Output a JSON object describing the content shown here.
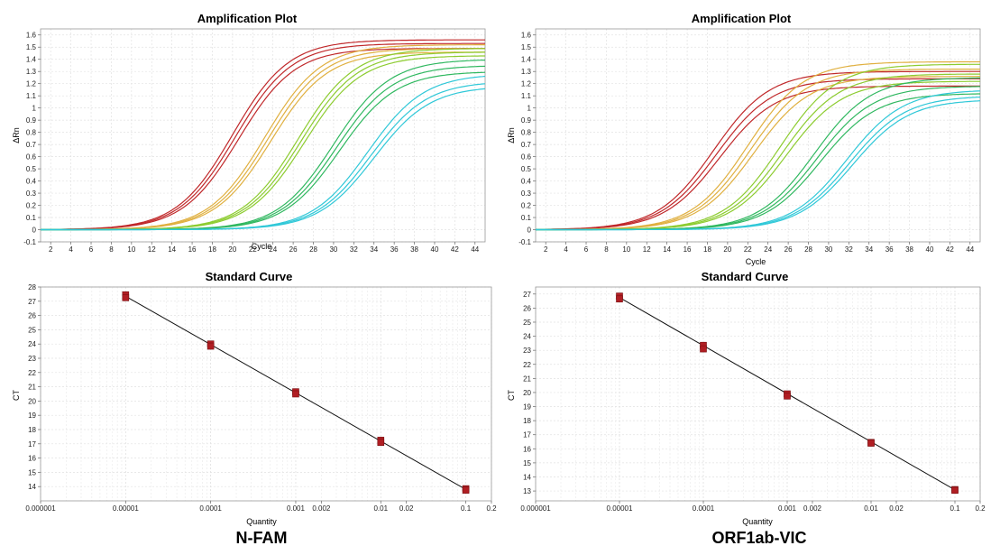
{
  "panels": [
    {
      "label": "N-FAM"
    },
    {
      "label": "ORF1ab-VIC"
    }
  ],
  "chart_data": [
    {
      "type": "line",
      "title": "Amplification Plot",
      "xlabel": "Cycle",
      "ylabel": "ΔRn",
      "xlim": [
        1,
        45
      ],
      "ylim": [
        -0.1,
        1.65
      ],
      "xticks": [
        2,
        4,
        6,
        8,
        10,
        12,
        14,
        16,
        18,
        20,
        22,
        24,
        26,
        28,
        30,
        32,
        34,
        36,
        38,
        40,
        42,
        44
      ],
      "yticks": [
        -0.1,
        0,
        0.1,
        0.2,
        0.3,
        0.4,
        0.5,
        0.6,
        0.7,
        0.8,
        0.9,
        1,
        1.1,
        1.2,
        1.3,
        1.4,
        1.5,
        1.6
      ],
      "grid": true,
      "series": [
        {
          "color": "#c0282a",
          "plateau": [
            1.56,
            1.53,
            1.49
          ],
          "midpoint_cycle": [
            20.0,
            20.3,
            20.6
          ]
        },
        {
          "color": "#e0b040",
          "plateau": [
            1.52,
            1.49,
            1.46
          ],
          "midpoint_cycle": [
            23.2,
            23.5,
            23.8
          ]
        },
        {
          "color": "#8dcc30",
          "plateau": [
            1.49,
            1.46,
            1.43
          ],
          "midpoint_cycle": [
            26.5,
            26.8,
            27.1
          ]
        },
        {
          "color": "#30b860",
          "plateau": [
            1.4,
            1.35,
            1.3
          ],
          "midpoint_cycle": [
            30.0,
            30.3,
            30.6
          ]
        },
        {
          "color": "#30c8d8",
          "plateau": [
            1.28,
            1.22,
            1.18
          ],
          "midpoint_cycle": [
            33.4,
            33.7,
            34.0
          ]
        }
      ]
    },
    {
      "type": "line",
      "title": "Amplification Plot",
      "xlabel": "Cycle",
      "ylabel": "ΔRn",
      "xlim": [
        1,
        45
      ],
      "ylim": [
        -0.1,
        1.65
      ],
      "xticks": [
        2,
        4,
        6,
        8,
        10,
        12,
        14,
        16,
        18,
        20,
        22,
        24,
        26,
        28,
        30,
        32,
        34,
        36,
        38,
        40,
        42,
        44
      ],
      "yticks": [
        -0.1,
        0,
        0.1,
        0.2,
        0.3,
        0.4,
        0.5,
        0.6,
        0.7,
        0.8,
        0.9,
        1,
        1.1,
        1.2,
        1.3,
        1.4,
        1.5,
        1.6
      ],
      "grid": true,
      "series": [
        {
          "color": "#c0282a",
          "plateau": [
            1.3,
            1.24,
            1.18
          ],
          "midpoint_cycle": [
            18.6,
            18.9,
            19.2
          ]
        },
        {
          "color": "#e0b040",
          "plateau": [
            1.38,
            1.32,
            1.26
          ],
          "midpoint_cycle": [
            22.0,
            22.3,
            22.6
          ]
        },
        {
          "color": "#8dcc30",
          "plateau": [
            1.36,
            1.28,
            1.22
          ],
          "midpoint_cycle": [
            25.2,
            25.5,
            25.8
          ]
        },
        {
          "color": "#30b860",
          "plateau": [
            1.25,
            1.18,
            1.12
          ],
          "midpoint_cycle": [
            28.6,
            28.9,
            29.2
          ]
        },
        {
          "color": "#30c8d8",
          "plateau": [
            1.15,
            1.1,
            1.07
          ],
          "midpoint_cycle": [
            31.8,
            32.1,
            32.4
          ]
        }
      ]
    },
    {
      "type": "scatter",
      "title": "Standard Curve",
      "xlabel": "Quantity",
      "ylabel": "CT",
      "xscale": "log",
      "xlim": [
        1e-06,
        0.2
      ],
      "ylim": [
        13,
        28
      ],
      "xticks": [
        1e-06,
        1e-05,
        0.0001,
        0.001,
        0.002,
        0.01,
        0.02,
        0.1,
        0.2
      ],
      "xtick_labels": [
        "0.000001",
        "0.00001",
        "0.0001",
        "0.001",
        "0.002",
        "0.01",
        "0.02",
        "0.1",
        "0.2"
      ],
      "yticks": [
        14,
        15,
        16,
        17,
        18,
        19,
        20,
        21,
        22,
        23,
        24,
        25,
        26,
        27,
        28
      ],
      "grid": true,
      "marker_color": "#b01e23",
      "points": [
        {
          "x": 1e-05,
          "y": [
            27.45,
            27.25
          ]
        },
        {
          "x": 0.0001,
          "y": [
            24.0,
            23.85
          ]
        },
        {
          "x": 0.001,
          "y": [
            20.65,
            20.5
          ]
        },
        {
          "x": 0.01,
          "y": [
            17.25,
            17.1
          ]
        },
        {
          "x": 0.1,
          "y": [
            13.85,
            13.75
          ]
        }
      ],
      "fit_line": {
        "x": [
          1e-05,
          0.1
        ],
        "y": [
          27.35,
          13.8
        ]
      }
    },
    {
      "type": "scatter",
      "title": "Standard Curve",
      "xlabel": "Quantity",
      "ylabel": "CT",
      "xscale": "log",
      "xlim": [
        1e-06,
        0.2
      ],
      "ylim": [
        12.3,
        27.5
      ],
      "xticks": [
        1e-06,
        1e-05,
        0.0001,
        0.001,
        0.002,
        0.01,
        0.02,
        0.1,
        0.2
      ],
      "xtick_labels": [
        "0.000001",
        "0.00001",
        "0.0001",
        "0.001",
        "0.002",
        "0.01",
        "0.02",
        "0.1",
        "0.2"
      ],
      "yticks": [
        13,
        14,
        15,
        16,
        17,
        18,
        19,
        20,
        21,
        22,
        23,
        24,
        25,
        26,
        27
      ],
      "grid": true,
      "marker_color": "#b01e23",
      "points": [
        {
          "x": 1e-05,
          "y": [
            26.85,
            26.65
          ]
        },
        {
          "x": 0.0001,
          "y": [
            23.35,
            23.1
          ]
        },
        {
          "x": 0.001,
          "y": [
            19.9,
            19.75
          ]
        },
        {
          "x": 0.01,
          "y": [
            16.45,
            16.4
          ]
        },
        {
          "x": 0.1,
          "y": [
            13.1,
            13.05
          ]
        }
      ],
      "fit_line": {
        "x": [
          1e-05,
          0.1
        ],
        "y": [
          26.75,
          13.08
        ]
      }
    }
  ]
}
